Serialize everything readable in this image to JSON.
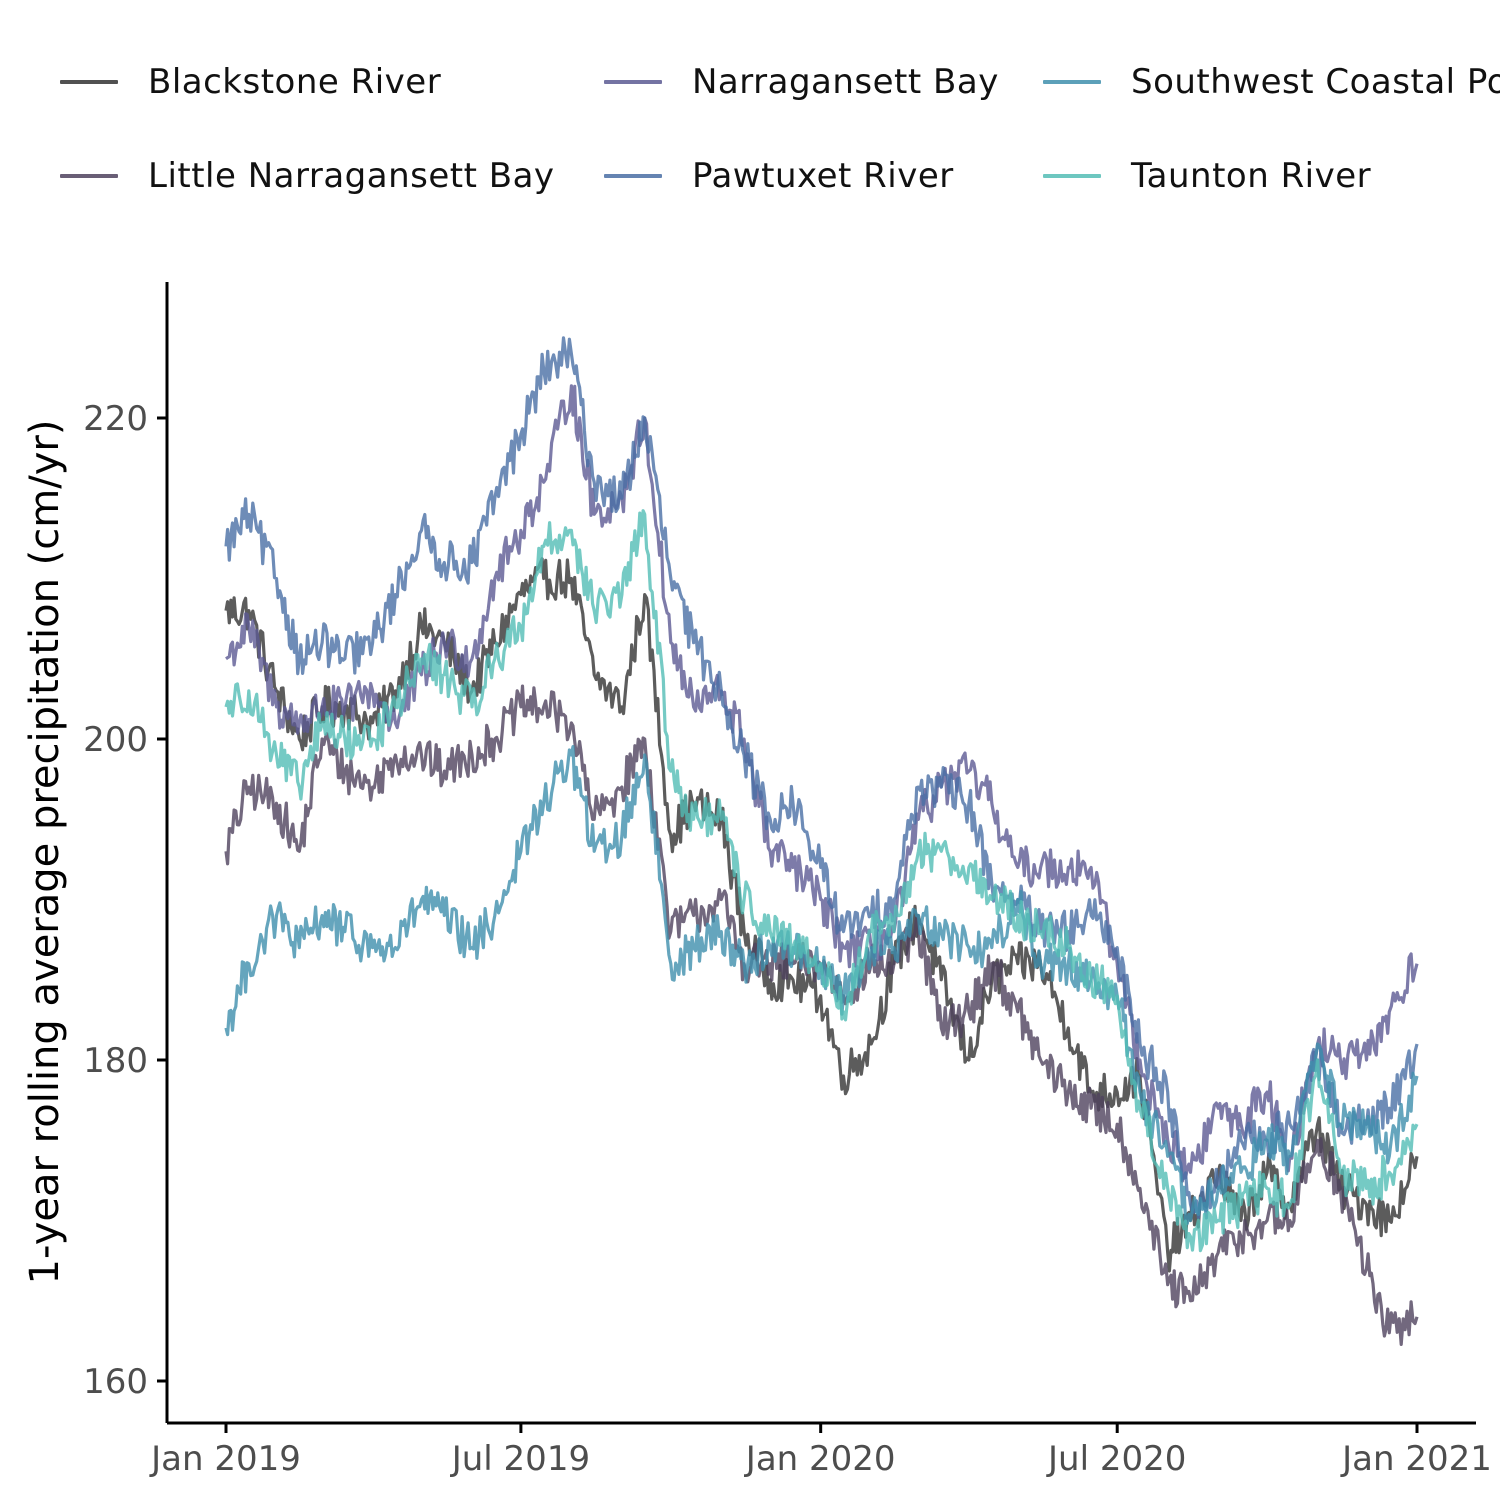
{
  "chart_data": {
    "type": "line",
    "title": "",
    "xlabel": "",
    "ylabel": "1-year rolling average precipitation (cm/yr)",
    "x_tick_labels": [
      "Jan 2019",
      "Jul 2019",
      "Jan 2020",
      "Jul 2020",
      "Jan 2021"
    ],
    "y_ticks": [
      160,
      180,
      200,
      220
    ],
    "xlim": [
      "2019-01-01",
      "2021-01-01"
    ],
    "ylim": [
      157.5,
      228.5
    ],
    "grid": false,
    "legend_position": "top",
    "x": [
      "2019-01-01",
      "2019-01-15",
      "2019-02-01",
      "2019-02-15",
      "2019-03-01",
      "2019-03-15",
      "2019-04-01",
      "2019-04-15",
      "2019-05-01",
      "2019-05-15",
      "2019-06-01",
      "2019-06-15",
      "2019-07-01",
      "2019-07-15",
      "2019-08-01",
      "2019-08-15",
      "2019-09-01",
      "2019-09-15",
      "2019-10-01",
      "2019-10-15",
      "2019-11-01",
      "2019-11-15",
      "2019-12-01",
      "2019-12-15",
      "2020-01-01",
      "2020-01-15",
      "2020-02-01",
      "2020-02-15",
      "2020-03-01",
      "2020-03-15",
      "2020-04-01",
      "2020-04-15",
      "2020-05-01",
      "2020-05-15",
      "2020-06-01",
      "2020-06-15",
      "2020-07-01",
      "2020-07-15",
      "2020-08-01",
      "2020-08-15",
      "2020-09-01",
      "2020-09-15",
      "2020-10-01",
      "2020-10-15",
      "2020-11-01",
      "2020-11-15",
      "2020-12-01",
      "2020-12-15",
      "2021-01-01"
    ],
    "series": [
      {
        "name": "Blackstone River",
        "color": "#333333",
        "values": [
          208,
          208,
          203,
          200,
          202,
          202,
          201,
          203,
          207,
          206,
          203,
          206,
          209,
          210,
          210,
          204,
          202,
          209,
          194,
          196,
          195,
          188,
          185,
          185,
          184,
          179,
          181,
          186,
          189,
          185,
          180,
          185,
          186,
          186,
          182,
          178,
          178,
          179,
          168,
          170,
          173,
          170,
          173,
          171,
          176,
          172,
          171,
          170,
          174
        ]
      },
      {
        "name": "Little Narragansett Bay",
        "color": "#4f425e",
        "values": [
          193,
          197,
          196,
          193,
          200,
          198,
          197,
          199,
          199,
          198,
          199,
          200,
          202,
          202,
          201,
          195,
          197,
          200,
          188,
          189,
          190,
          186,
          186,
          186,
          186,
          184,
          186,
          186,
          188,
          182,
          183,
          186,
          183,
          180,
          178,
          177,
          176,
          172,
          166,
          165,
          168,
          169,
          170,
          170,
          175,
          172,
          167,
          163,
          164
        ]
      },
      {
        "name": "Narragansett Bay",
        "color": "#5c5a93",
        "values": [
          205,
          207,
          202,
          201,
          202,
          202,
          203,
          201,
          204,
          206,
          205,
          210,
          213,
          216,
          222,
          214,
          215,
          220,
          206,
          202,
          203,
          200,
          193,
          192,
          190,
          187,
          187,
          188,
          195,
          197,
          198,
          196,
          192,
          192,
          192,
          192,
          186,
          180,
          175,
          173,
          177,
          176,
          178,
          174,
          181,
          180,
          180,
          183,
          186
        ]
      },
      {
        "name": "Pawtuxet River",
        "color": "#4a6fa5",
        "values": [
          212,
          214,
          210,
          205,
          206,
          205,
          206,
          209,
          213,
          211,
          211,
          215,
          219,
          223,
          224,
          216,
          215,
          220,
          210,
          206,
          203,
          199,
          195,
          196,
          192,
          188,
          189,
          190,
          197,
          197,
          196,
          191,
          190,
          188,
          188,
          189,
          187,
          181,
          178,
          171,
          172,
          175,
          175,
          176,
          180,
          176,
          176,
          177,
          181
        ]
      },
      {
        "name": "Southwest Coastal Ponds",
        "color": "#3f8fad",
        "values": [
          182,
          186,
          189,
          187,
          189,
          188,
          187,
          187,
          190,
          189,
          187,
          189,
          193,
          196,
          199,
          193,
          194,
          199,
          186,
          187,
          188,
          186,
          187,
          187,
          186,
          184,
          187,
          187,
          189,
          188,
          187,
          187,
          190,
          186,
          186,
          185,
          184,
          178,
          174,
          170,
          172,
          173,
          175,
          174,
          181,
          176,
          176,
          174,
          179
        ]
      },
      {
        "name": "Taunton River",
        "color": "#53bdb5",
        "values": [
          202,
          203,
          199,
          197,
          201,
          200,
          200,
          202,
          205,
          204,
          202,
          205,
          207,
          212,
          213,
          208,
          209,
          214,
          198,
          195,
          195,
          190,
          188,
          187,
          186,
          183,
          188,
          188,
          193,
          193,
          192,
          190,
          189,
          188,
          187,
          185,
          184,
          177,
          172,
          169,
          170,
          171,
          172,
          171,
          180,
          173,
          172,
          173,
          176
        ]
      }
    ]
  }
}
